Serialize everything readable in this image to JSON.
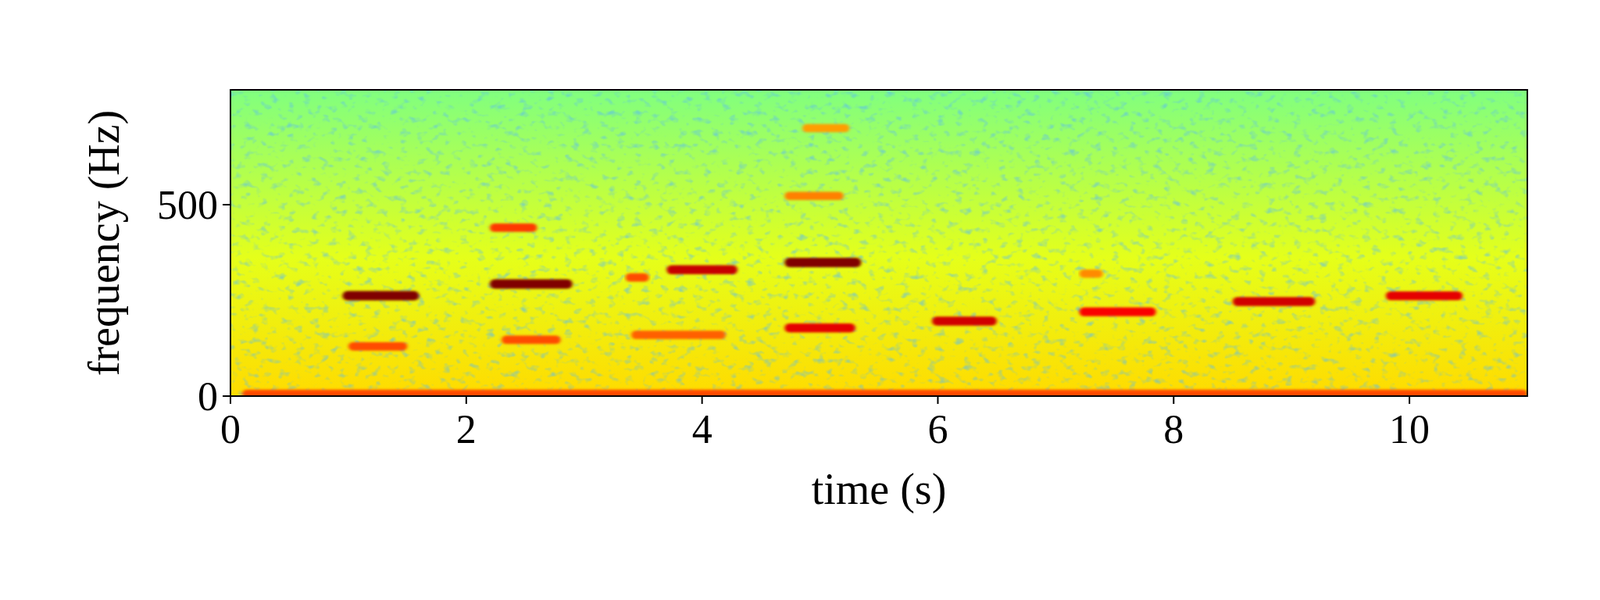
{
  "chart_data": {
    "type": "spectrogram",
    "xlabel": "time (s)",
    "ylabel": "frequency (Hz)",
    "xlim": [
      0,
      11
    ],
    "xticks": [
      0,
      2,
      4,
      6,
      8,
      10
    ],
    "ylim": [
      0,
      800
    ],
    "yticks": [
      0,
      500
    ],
    "tones": [
      {
        "start": 0.1,
        "end": 11,
        "frequency": 6,
        "level": 0.8
      },
      {
        "start": 0.95,
        "end": 1.6,
        "frequency": 262,
        "level": 1.0
      },
      {
        "start": 1.0,
        "end": 1.5,
        "frequency": 130,
        "level": 0.8
      },
      {
        "start": 2.2,
        "end": 2.9,
        "frequency": 293,
        "level": 1.0
      },
      {
        "start": 2.2,
        "end": 2.6,
        "frequency": 440,
        "level": 0.82
      },
      {
        "start": 2.3,
        "end": 2.8,
        "frequency": 147,
        "level": 0.8
      },
      {
        "start": 3.35,
        "end": 3.55,
        "frequency": 310,
        "level": 0.8
      },
      {
        "start": 3.7,
        "end": 4.3,
        "frequency": 330,
        "level": 0.93
      },
      {
        "start": 3.4,
        "end": 4.2,
        "frequency": 160,
        "level": 0.78
      },
      {
        "start": 4.7,
        "end": 5.35,
        "frequency": 349,
        "level": 1.0
      },
      {
        "start": 4.7,
        "end": 5.3,
        "frequency": 178,
        "level": 0.9
      },
      {
        "start": 4.7,
        "end": 5.2,
        "frequency": 523,
        "level": 0.75
      },
      {
        "start": 4.85,
        "end": 5.25,
        "frequency": 700,
        "level": 0.72
      },
      {
        "start": 5.95,
        "end": 6.5,
        "frequency": 196,
        "level": 0.92
      },
      {
        "start": 7.2,
        "end": 7.85,
        "frequency": 220,
        "level": 0.88
      },
      {
        "start": 7.2,
        "end": 7.4,
        "frequency": 320,
        "level": 0.74
      },
      {
        "start": 8.5,
        "end": 9.2,
        "frequency": 247,
        "level": 0.92
      },
      {
        "start": 9.8,
        "end": 10.45,
        "frequency": 262,
        "level": 0.9
      }
    ]
  }
}
